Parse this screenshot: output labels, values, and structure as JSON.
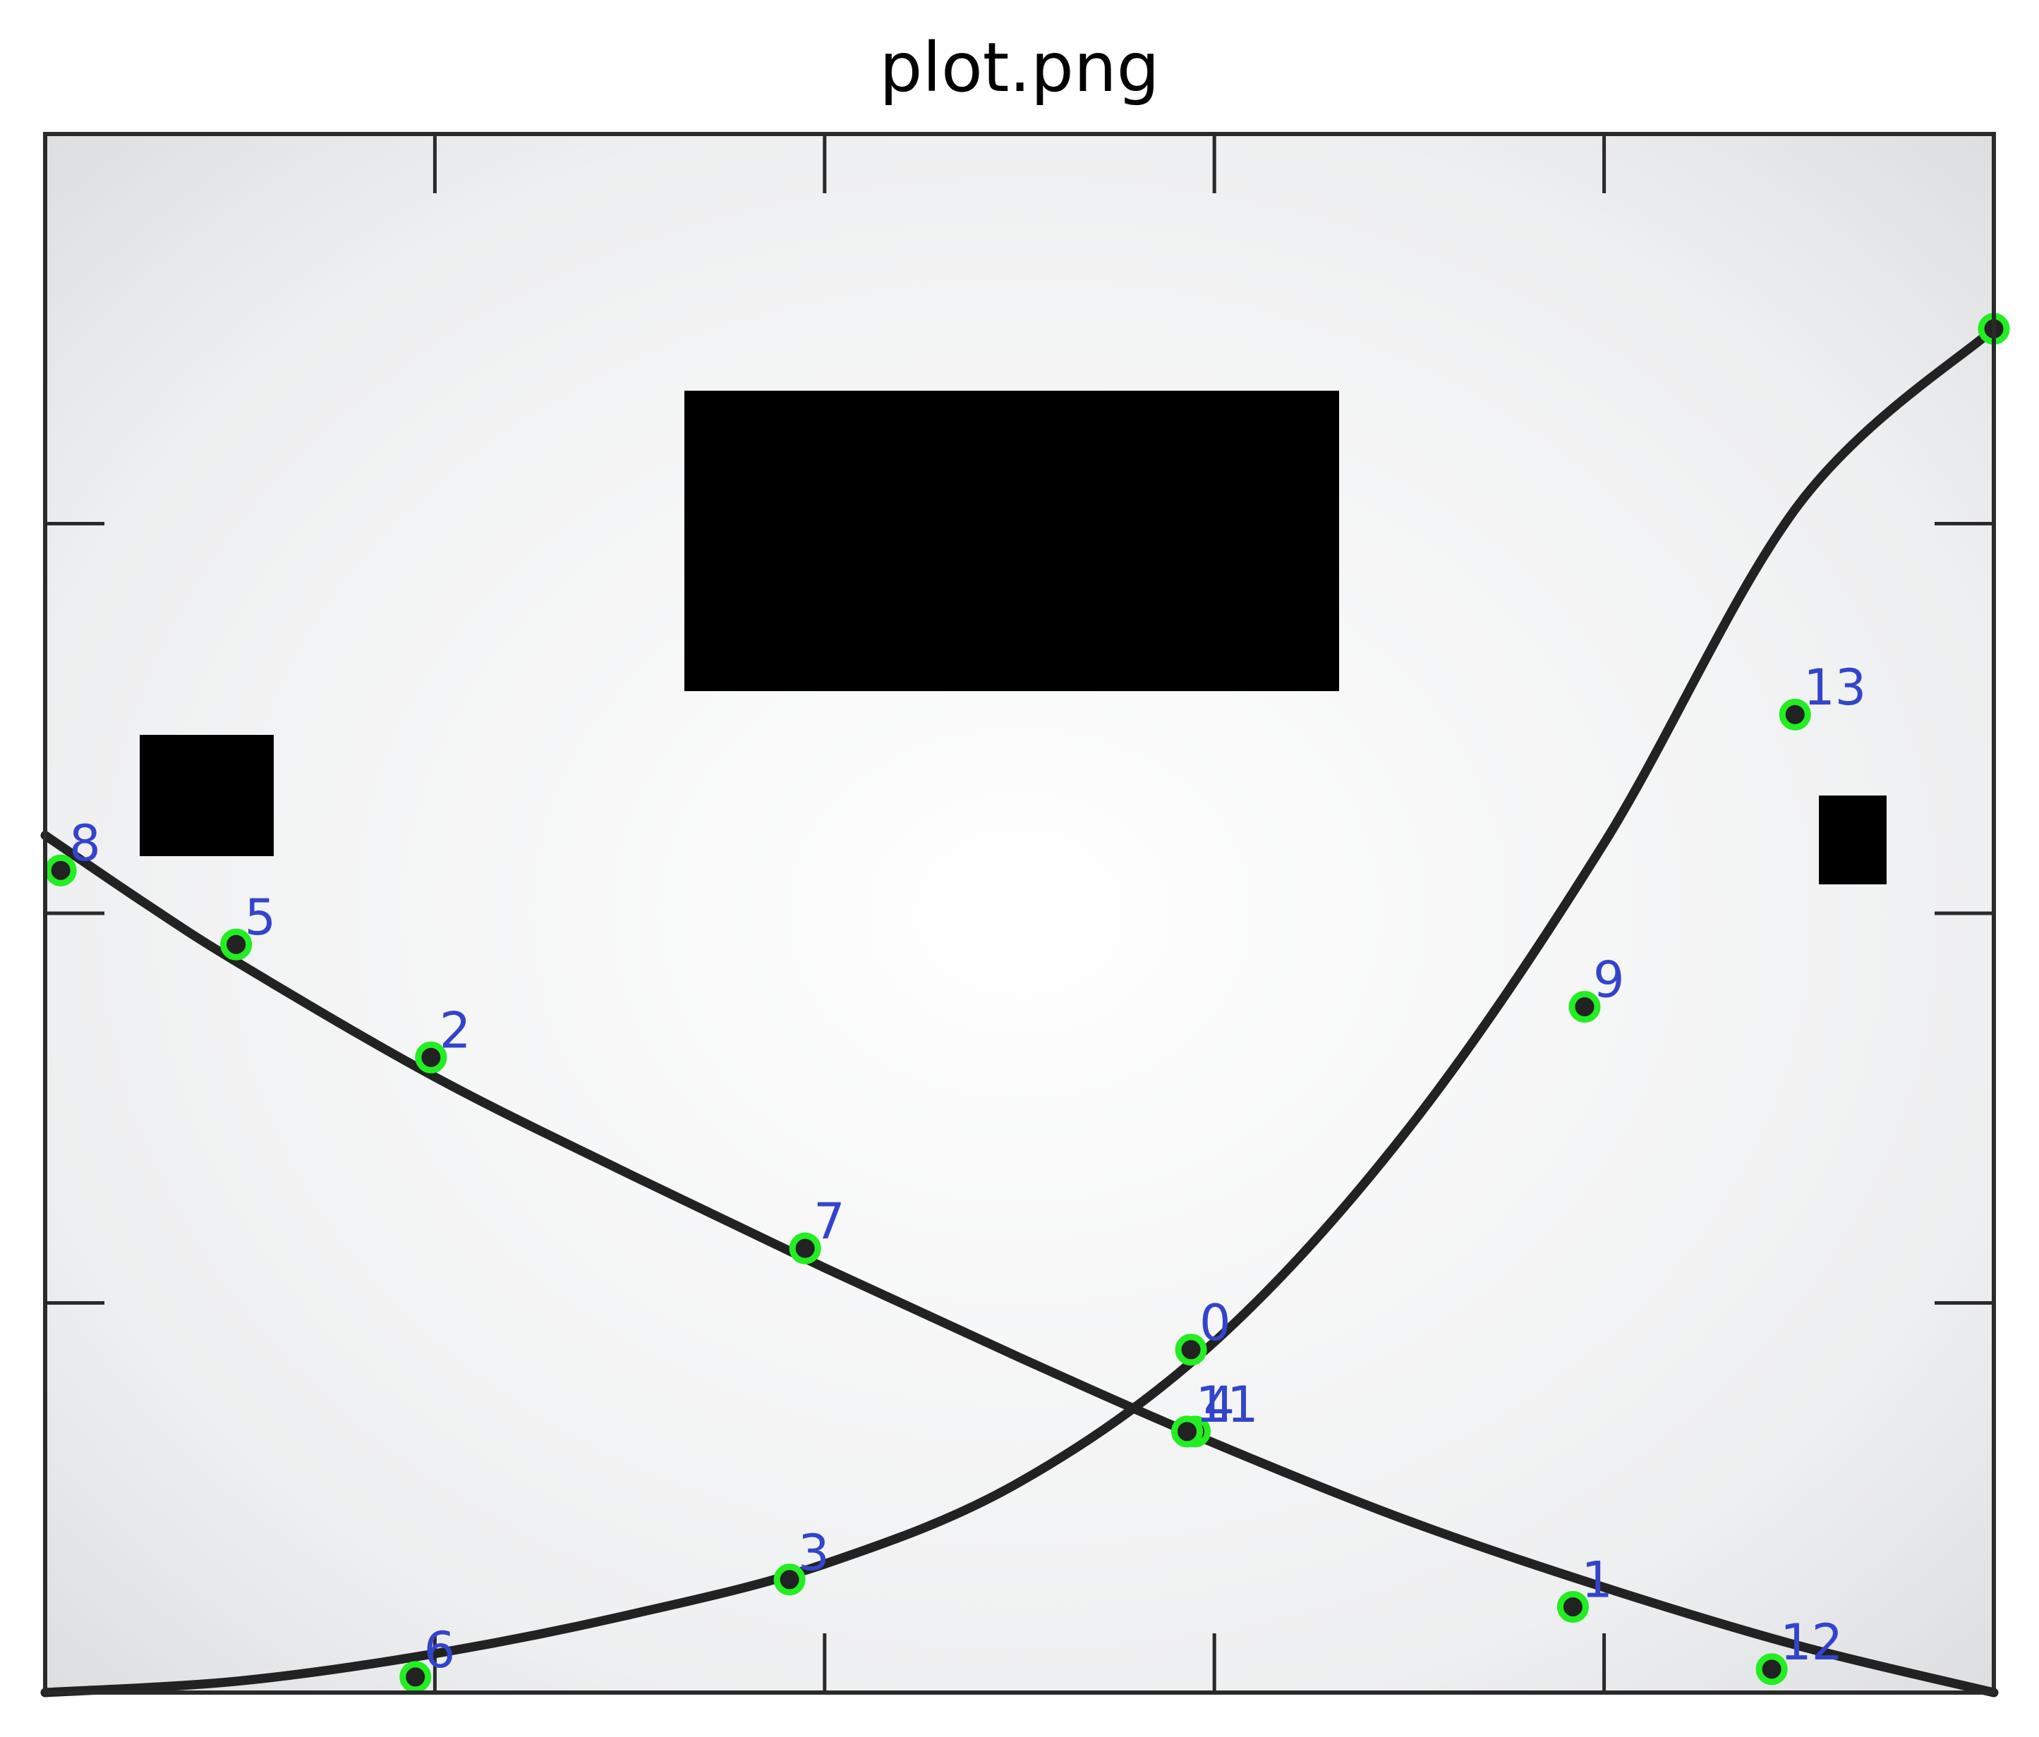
{
  "figure": {
    "title": "plot.png"
  },
  "chart_data": {
    "type": "line",
    "title": "",
    "xlabel": "",
    "ylabel": "",
    "xlim": [
      0,
      5
    ],
    "ylim": [
      0,
      4
    ],
    "grid": false,
    "x_ticks": [
      1,
      2,
      3,
      4
    ],
    "y_ticks": [
      1,
      2,
      3
    ],
    "tick_labels_visible": false,
    "series": [
      {
        "curve": "decreasing",
        "x": [
          0,
          0.25,
          0.5,
          1,
          1.5,
          2,
          2.5,
          3,
          3.5,
          4,
          4.5,
          5
        ],
        "y": [
          2.2,
          2.03,
          1.87,
          1.58,
          1.33,
          1.09,
          0.86,
          0.64,
          0.44,
          0.27,
          0.12,
          0.0
        ]
      },
      {
        "curve": "increasing",
        "x": [
          0,
          0.5,
          1,
          1.5,
          2,
          2.5,
          3,
          3.5,
          4,
          4.5,
          5
        ],
        "y": [
          0.0,
          0.03,
          0.1,
          0.2,
          0.33,
          0.54,
          0.9,
          1.45,
          2.18,
          3.05,
          3.5
        ]
      }
    ],
    "annotated_points": [
      {
        "label": "0",
        "x": 2.94,
        "y": 0.88
      },
      {
        "label": "1",
        "x": 3.92,
        "y": 0.22
      },
      {
        "label": "2",
        "x": 0.99,
        "y": 1.63
      },
      {
        "label": "3",
        "x": 1.91,
        "y": 0.29
      },
      {
        "label": "4",
        "x": 2.95,
        "y": 0.67
      },
      {
        "label": "5",
        "x": 0.49,
        "y": 1.92
      },
      {
        "label": "6",
        "x": 0.95,
        "y": 0.04
      },
      {
        "label": "7",
        "x": 1.95,
        "y": 1.14
      },
      {
        "label": "8",
        "x": 0.04,
        "y": 2.11
      },
      {
        "label": "9",
        "x": 3.95,
        "y": 1.76
      },
      {
        "label": "11",
        "x": 2.93,
        "y": 0.67
      },
      {
        "label": "12",
        "x": 4.43,
        "y": 0.06
      },
      {
        "label": "13",
        "x": 4.49,
        "y": 2.51
      },
      {
        "label": "",
        "x": 5.0,
        "y": 3.5
      }
    ],
    "occlusions": 3,
    "colors": {
      "curve": "#222222",
      "marker_fill": "#222222",
      "marker_ring": "#22ee22",
      "label": "#3344cc",
      "occluder": "#000000",
      "frame": "#2a2a2a"
    }
  }
}
